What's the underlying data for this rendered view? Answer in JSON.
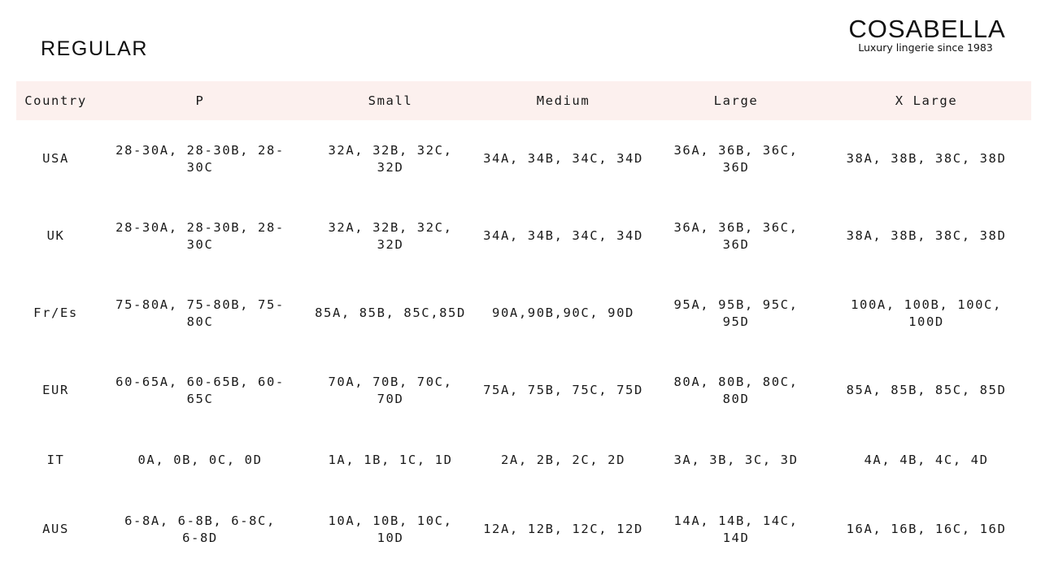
{
  "title": "REGULAR",
  "logo": {
    "brand": "COSABELLA",
    "tagline": "Luxury lingerie since 1983"
  },
  "table": {
    "headers": [
      "Country",
      "P",
      "Small",
      "Medium",
      "Large",
      "X Large"
    ],
    "header_background": "#fcf0ee",
    "rows": [
      [
        "USA",
        "28-30A, 28-30B, 28-30C",
        "32A, 32B, 32C, 32D",
        "34A, 34B, 34C, 34D",
        "36A, 36B, 36C, 36D",
        "38A, 38B, 38C, 38D"
      ],
      [
        "UK",
        "28-30A, 28-30B, 28-30C",
        "32A, 32B, 32C, 32D",
        "34A, 34B, 34C, 34D",
        "36A, 36B, 36C, 36D",
        "38A, 38B, 38C, 38D"
      ],
      [
        "Fr/Es",
        "75-80A, 75-80B, 75-80C",
        "85A, 85B, 85C,85D",
        "90A,90B,90C, 90D",
        "95A, 95B, 95C, 95D",
        "100A, 100B, 100C, 100D"
      ],
      [
        "EUR",
        "60-65A, 60-65B, 60-65C",
        "70A, 70B, 70C, 70D",
        "75A, 75B, 75C, 75D",
        "80A, 80B, 80C, 80D",
        "85A, 85B, 85C, 85D"
      ],
      [
        "IT",
        "0A, 0B, 0C, 0D",
        "1A, 1B, 1C, 1D",
        "2A, 2B, 2C, 2D",
        "3A, 3B, 3C, 3D",
        "4A, 4B, 4C, 4D"
      ],
      [
        "AUS",
        "6-8A, 6-8B, 6-8C, 6-8D",
        "10A, 10B, 10C, 10D",
        "12A, 12B, 12C, 12D",
        "14A, 14B, 14C, 14D",
        "16A, 16B, 16C, 16D"
      ]
    ]
  }
}
